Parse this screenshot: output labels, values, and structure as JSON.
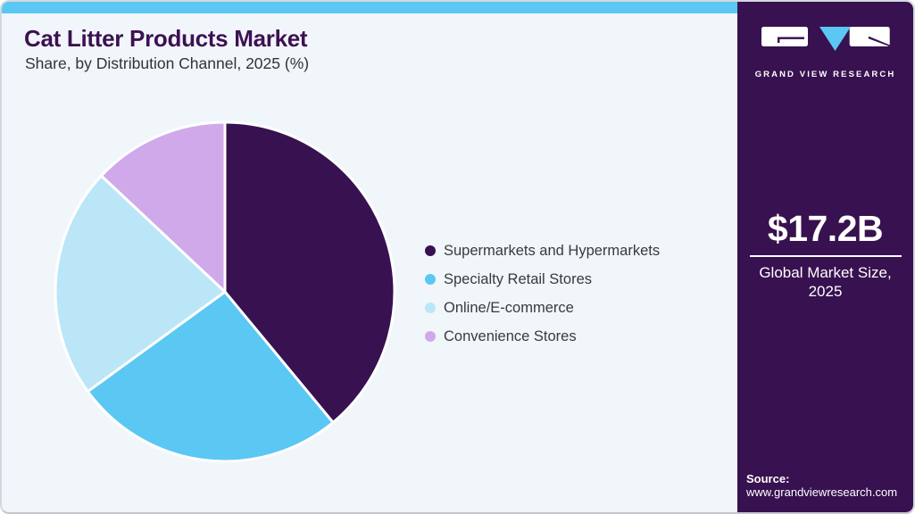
{
  "page": {
    "title": "Cat Litter Products Market",
    "subtitle": "Share, by Distribution Channel, 2025 (%)"
  },
  "chart_data": {
    "type": "pie",
    "title": "Cat Litter Products Market Share, by Distribution Channel, 2025 (%)",
    "unit": "percent",
    "start_angle_deg": 0,
    "direction": "clockwise",
    "legend_position": "right",
    "categories": [
      "Supermarkets and Hypermarkets",
      "Specialty Retail Stores",
      "Online/E-commerce",
      "Convenience Stores"
    ],
    "values": [
      39,
      26,
      22,
      13
    ],
    "colors": [
      "#381150",
      "#5BC7F3",
      "#BAE6F8",
      "#D0A9EA"
    ]
  },
  "sidebar": {
    "logo_text": "GRAND VIEW RESEARCH",
    "market_size_value": "$17.2B",
    "market_size_label": "Global Market Size, 2025",
    "source_label": "Source:",
    "source_url": "www.grandviewresearch.com"
  },
  "theme": {
    "accent_blue": "#5BC7F3",
    "brand_purple": "#381150",
    "panel_background": "#F1F6FA",
    "title_color": "#3D1152",
    "subtitle_color": "#333336",
    "legend_text_color": "#3A3A3C"
  }
}
